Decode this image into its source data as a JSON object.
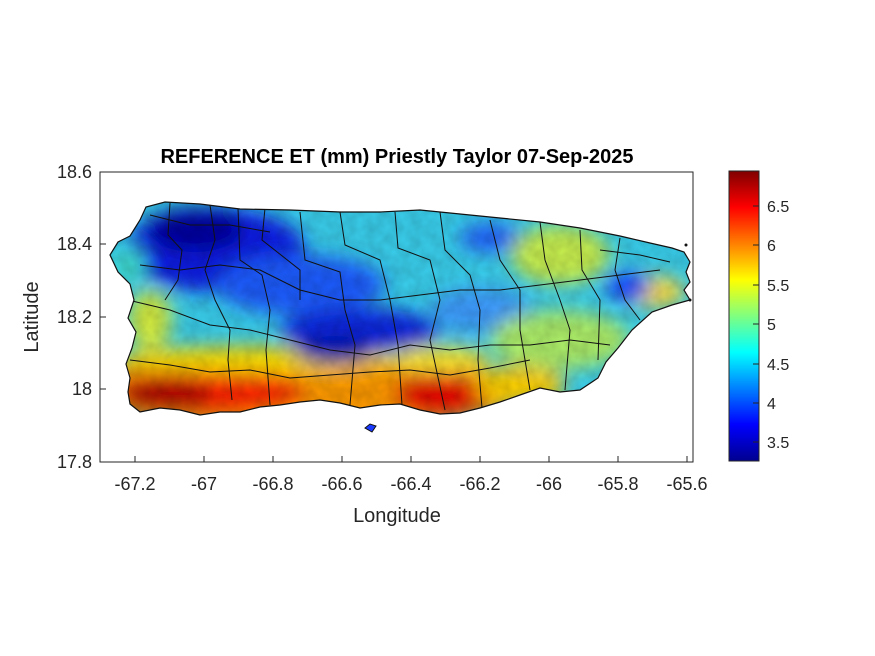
{
  "title": "REFERENCE ET (mm) Priestly Taylor 07-Sep-2025",
  "xlabel": "Longitude",
  "ylabel": "Latitude",
  "x_ticks": [
    "-67.2",
    "-67",
    "-66.8",
    "-66.6",
    "-66.4",
    "-66.2",
    "-66",
    "-65.8",
    "-65.6"
  ],
  "y_ticks": [
    "18.6",
    "18.4",
    "18.2",
    "18",
    "17.8"
  ],
  "colorbar": {
    "colormap": "jet",
    "ticks": [
      "6.5",
      "6",
      "5.5",
      "5",
      "4.5",
      "4",
      "3.5"
    ]
  },
  "chart_data": {
    "type": "heatmap",
    "title": "REFERENCE ET (mm) Priestly Taylor 07-Sep-2025",
    "xlabel": "Longitude",
    "ylabel": "Latitude",
    "xlim": [
      -67.3,
      -65.58
    ],
    "ylim": [
      17.8,
      18.6
    ],
    "colorbar_range": [
      3.25,
      6.95
    ],
    "colormap": "jet",
    "spatial_pattern": {
      "north_central_west_min_region": {
        "lon": [
          -67.1,
          -66.8
        ],
        "lat": [
          18.3,
          18.5
        ],
        "value": 3.6
      },
      "central_band": {
        "lon": [
          -66.7,
          -66.5
        ],
        "lat": [
          18.1,
          18.25
        ],
        "value": 4.0
      },
      "northeast_min_pocket": {
        "lon": -65.82,
        "lat": 18.27,
        "value": 3.8
      },
      "northeast_coast": {
        "lon": [
          -66.05,
          -65.85
        ],
        "lat": [
          18.35,
          18.42
        ],
        "value": 5.3
      },
      "southwest_coast_max": {
        "lon": [
          -67.2,
          -66.9
        ],
        "lat": [
          17.95,
          18.03
        ],
        "value": 6.8
      },
      "south_coast_central": {
        "lon": [
          -66.45,
          -66.3
        ],
        "lat": [
          17.93,
          18.0
        ],
        "value": 6.7
      },
      "east_interior": {
        "lon": [
          -66.1,
          -65.9
        ],
        "lat": [
          18.05,
          18.2
        ],
        "value": 5.0
      }
    }
  }
}
